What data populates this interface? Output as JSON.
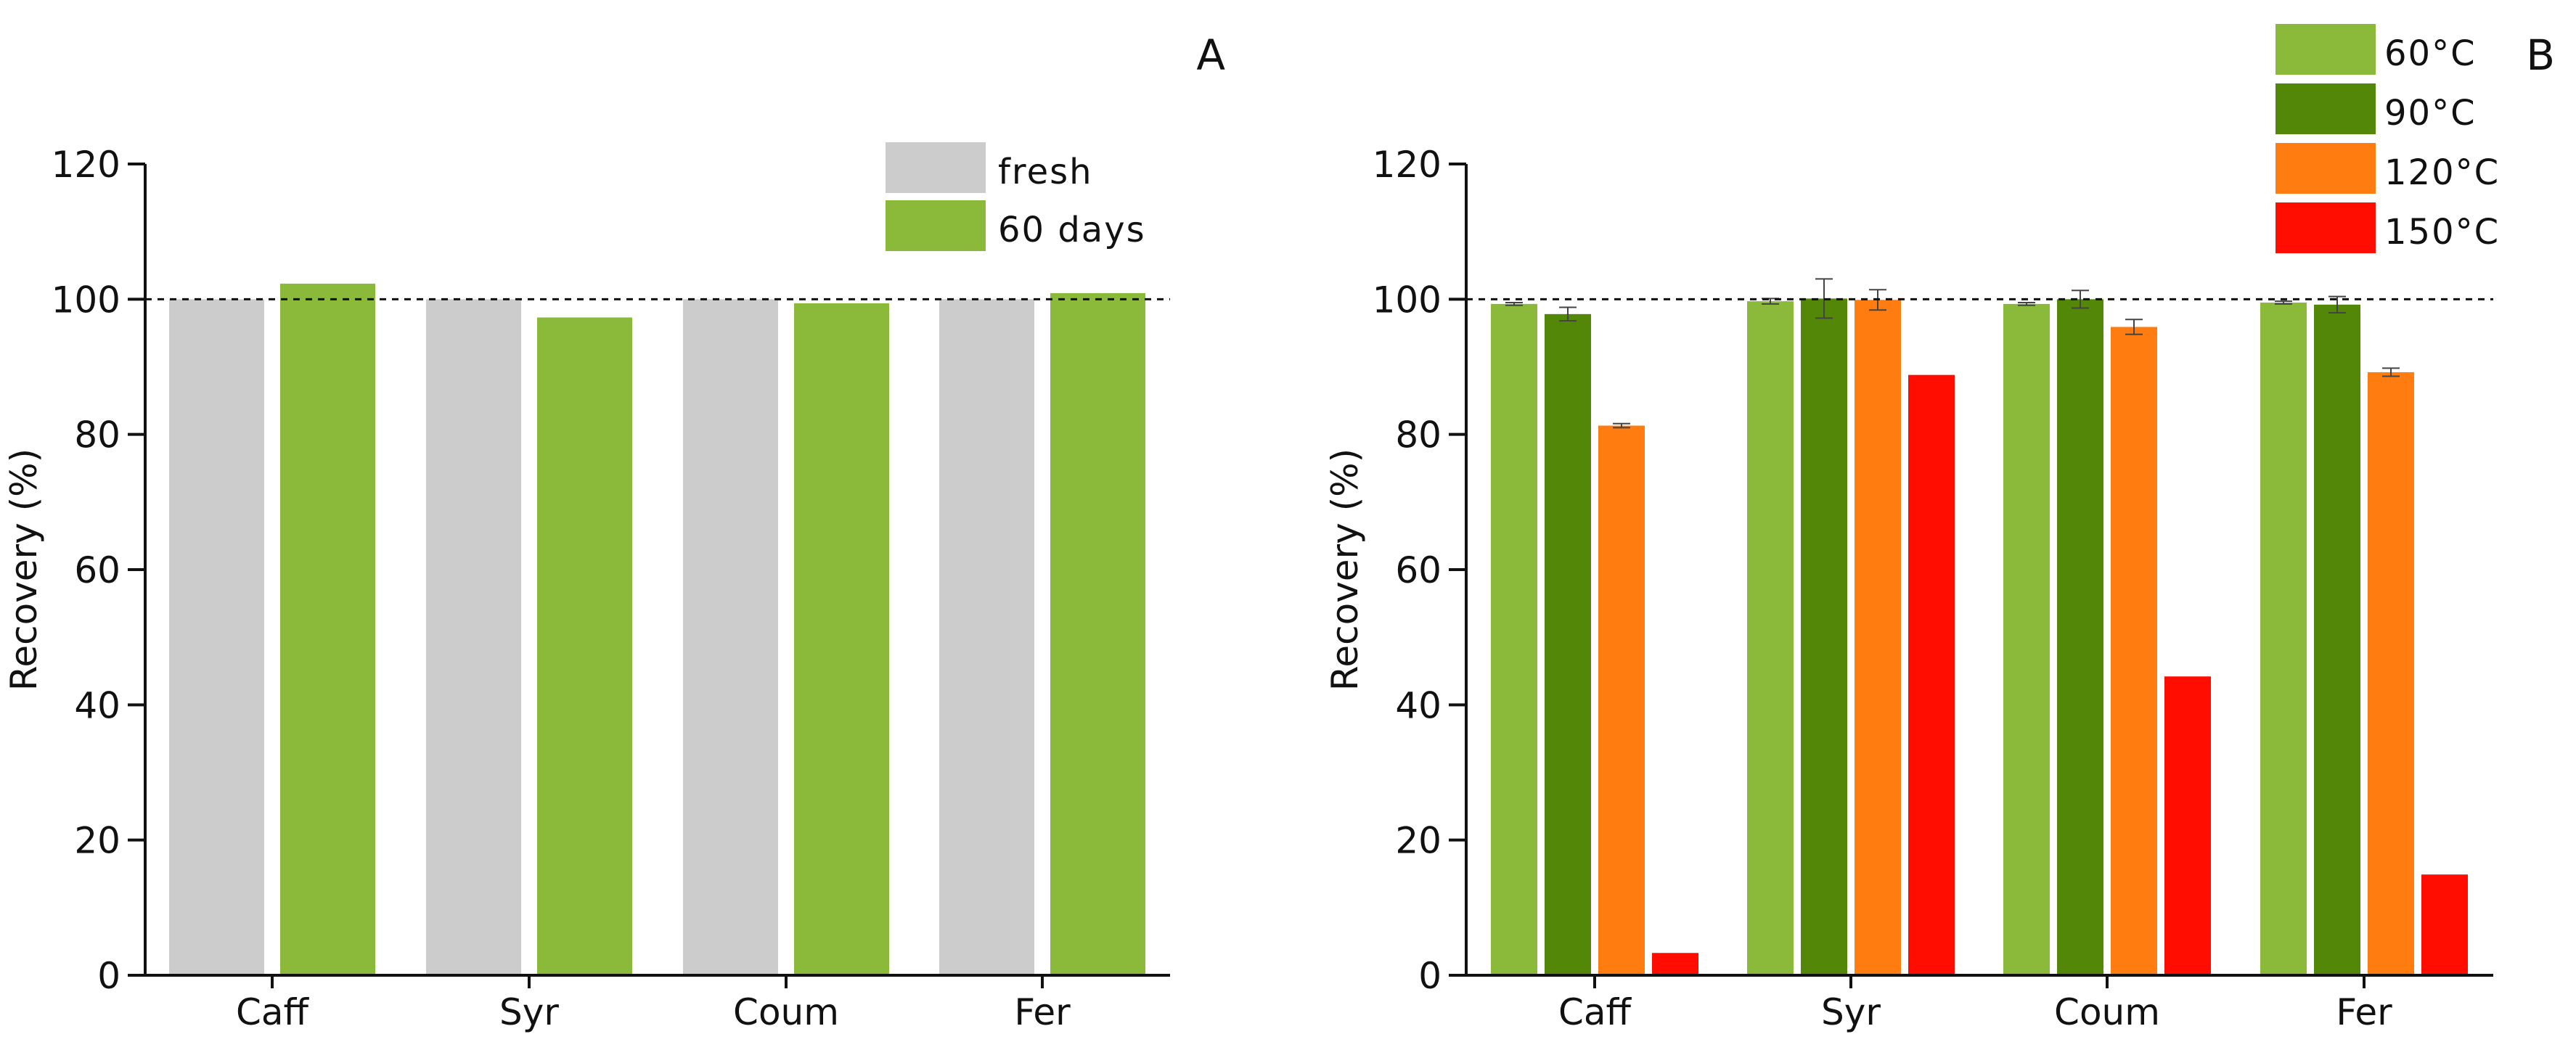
{
  "chart_data": [
    {
      "panel_label": "A",
      "type": "bar",
      "title": "",
      "ylabel": "Recovery (%)",
      "xlabel": "",
      "ylim": [
        0,
        120
      ],
      "yticks": [
        0,
        20,
        40,
        60,
        80,
        100,
        120
      ],
      "reference_line": 100,
      "categories": [
        "Caff",
        "Syr",
        "Coum",
        "Fer"
      ],
      "series": [
        {
          "name": "fresh",
          "color": "#cccccc",
          "values": [
            100,
            100,
            100,
            100
          ]
        },
        {
          "name": "60 days",
          "color": "#8bba3a",
          "values": [
            102.3,
            97.3,
            99.4,
            100.9
          ]
        }
      ],
      "legend_position": "top-right"
    },
    {
      "panel_label": "B",
      "type": "bar",
      "title": "",
      "ylabel": "Recovery (%)",
      "xlabel": "",
      "ylim": [
        0,
        120
      ],
      "yticks": [
        0,
        20,
        40,
        60,
        80,
        100,
        120
      ],
      "reference_line": 100,
      "categories": [
        "Caff",
        "Syr",
        "Coum",
        "Fer"
      ],
      "series": [
        {
          "name": "60°C",
          "color": "#8bba3a",
          "values": [
            99.3,
            99.7,
            99.3,
            99.5
          ],
          "errors": [
            0.2,
            0.4,
            0.2,
            0.2
          ]
        },
        {
          "name": "90°C",
          "color": "#538707",
          "values": [
            97.8,
            100.1,
            100.0,
            99.2
          ],
          "errors": [
            1.0,
            2.9,
            1.3,
            1.2
          ]
        },
        {
          "name": "120°C",
          "color": "#ff7c10",
          "values": [
            81.3,
            99.9,
            95.9,
            89.2
          ],
          "errors": [
            0.3,
            1.5,
            1.1,
            0.6
          ]
        },
        {
          "name": "150°C",
          "color": "#ff0d00",
          "values": [
            3.3,
            88.8,
            44.2,
            14.9
          ],
          "errors": [
            0,
            0,
            0,
            0
          ]
        }
      ],
      "legend_position": "top-right"
    }
  ]
}
